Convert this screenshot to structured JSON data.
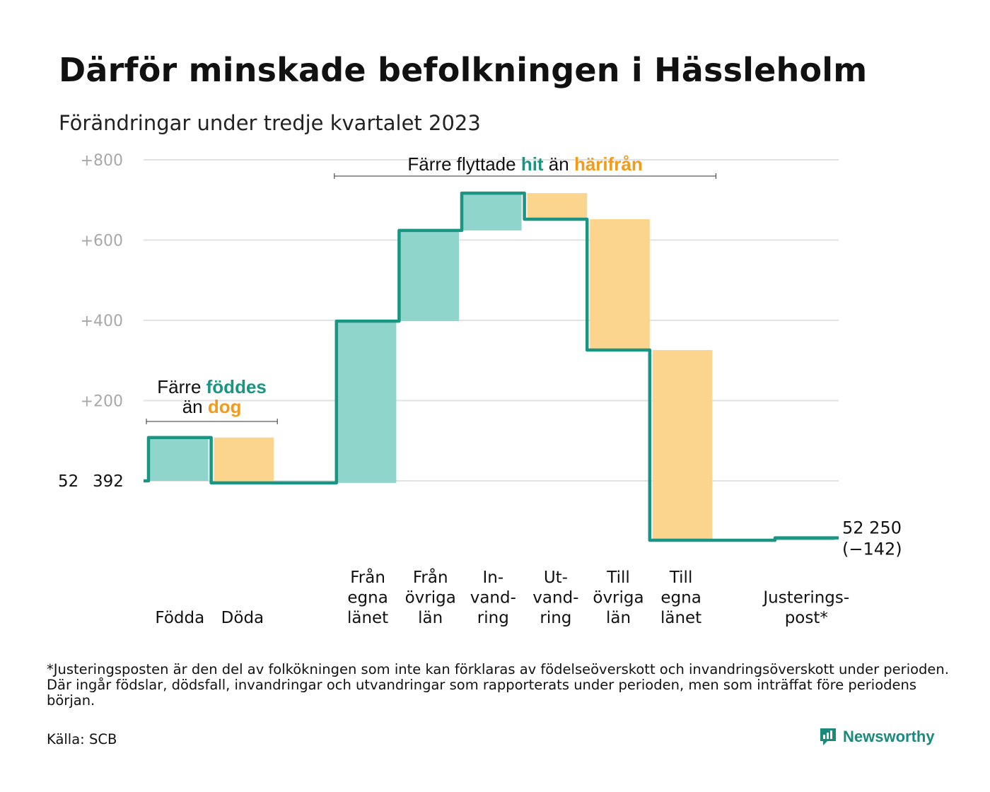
{
  "title": "Därför minskade befolkningen i Hässleholm",
  "subtitle": "Förändringar under tredje kvartalet 2023",
  "footnote": "*Justeringsposten är den del av folkökningen som inte kan förklaras av födelseöverskott och invandringsöverskott under perioden. Där ingår födslar, dödsfall, invandringar och utvandringar som rapporterats under perioden, men som inträffat före periodens början.",
  "source": "Källa: SCB",
  "brand": {
    "name": "Newsworthy",
    "icon": "newsworthy-logo-icon"
  },
  "colors": {
    "increase": "#8fd5cc",
    "decrease": "#fbd48d",
    "line": "#1a9583",
    "green_text": "#1a9583",
    "orange_text": "#f29a1a",
    "grid": "#e2e2e2",
    "tick": "#a8a8a8"
  },
  "chart_data": {
    "type": "waterfall",
    "baseline_value": 52392,
    "start_label_parts": [
      "52",
      "392"
    ],
    "end_label_lines": [
      "52 250",
      "(−142)"
    ],
    "yticks": [
      {
        "value": 200,
        "label": "+200"
      },
      {
        "value": 400,
        "label": "+400"
      },
      {
        "value": 600,
        "label": "+600"
      },
      {
        "value": 800,
        "label": "+800"
      }
    ],
    "ylim": [
      -175,
      800
    ],
    "steps": [
      {
        "label_lines": [
          "Födda"
        ],
        "from": 0,
        "to": 108,
        "kind": "increase"
      },
      {
        "label_lines": [
          "Döda"
        ],
        "from": 108,
        "to": -5,
        "kind": "decrease"
      },
      {
        "label_lines": [],
        "from": -5,
        "to": -5,
        "kind": "gap"
      },
      {
        "label_lines": [
          "Från",
          "egna",
          "länet"
        ],
        "from": -5,
        "to": 398,
        "kind": "increase"
      },
      {
        "label_lines": [
          "Från",
          "övriga",
          "län"
        ],
        "from": 398,
        "to": 624,
        "kind": "increase"
      },
      {
        "label_lines": [
          "In-",
          "vand-",
          "ring"
        ],
        "from": 624,
        "to": 717,
        "kind": "increase"
      },
      {
        "label_lines": [
          "Ut-",
          "vand-",
          "ring"
        ],
        "from": 717,
        "to": 652,
        "kind": "decrease"
      },
      {
        "label_lines": [
          "Till",
          "övriga",
          "län"
        ],
        "from": 652,
        "to": 326,
        "kind": "decrease"
      },
      {
        "label_lines": [
          "Till",
          "egna",
          "länet"
        ],
        "from": 326,
        "to": -148,
        "kind": "decrease"
      },
      {
        "label_lines": [],
        "from": -148,
        "to": -148,
        "kind": "gap"
      },
      {
        "label_lines": [
          "Justerings-",
          "post*"
        ],
        "from": -148,
        "to": -142,
        "kind": "increase"
      }
    ],
    "annotations": [
      {
        "kind": "births_deaths",
        "line1": [
          "Färre ",
          "föddes"
        ],
        "line2": [
          "än ",
          "dog"
        ],
        "span": [
          0,
          1
        ]
      },
      {
        "kind": "migration",
        "line1": [
          "Färre flyttade ",
          "hit",
          " än ",
          "härifrån"
        ],
        "span": [
          3,
          8
        ]
      }
    ]
  }
}
